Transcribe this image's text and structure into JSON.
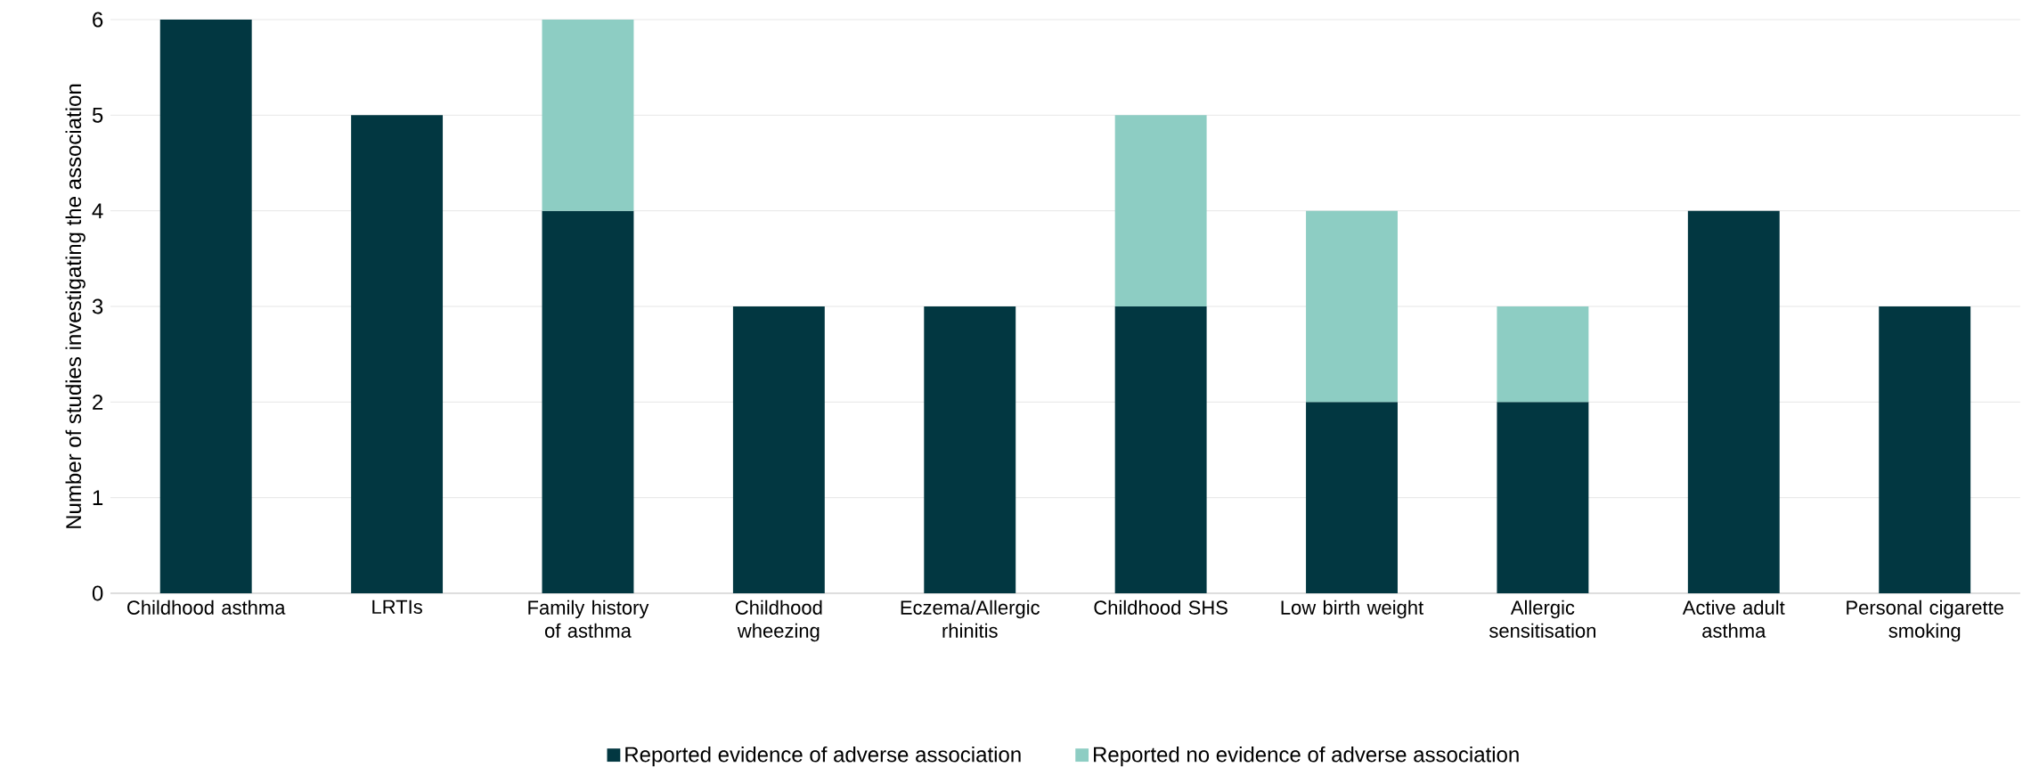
{
  "chart_data": {
    "type": "bar",
    "stacked": true,
    "ylabel": "Number of studies investigating the association",
    "categories": [
      "Childhood asthma",
      "LRTIs",
      "Family history of asthma",
      "Childhood wheezing",
      "Eczema/Allergic rhinitis",
      "Childhood SHS",
      "Low birth weight",
      "Allergic sensitisation",
      "Active adult asthma",
      "Personal cigarette smoking"
    ],
    "series": [
      {
        "name": "Reported evidence of adverse association",
        "color": "#023741",
        "values": [
          6,
          5,
          4,
          3,
          3,
          3,
          2,
          2,
          4,
          3
        ]
      },
      {
        "name": "Reported no evidence of adverse association",
        "color": "#8dcdc3",
        "values": [
          null,
          null,
          2,
          null,
          null,
          2,
          2,
          1,
          null,
          null
        ]
      }
    ],
    "ylim": [
      0,
      6
    ],
    "yticks": [
      0,
      1,
      2,
      3,
      4,
      5,
      6
    ],
    "grid": "y",
    "legend": "bottom"
  }
}
